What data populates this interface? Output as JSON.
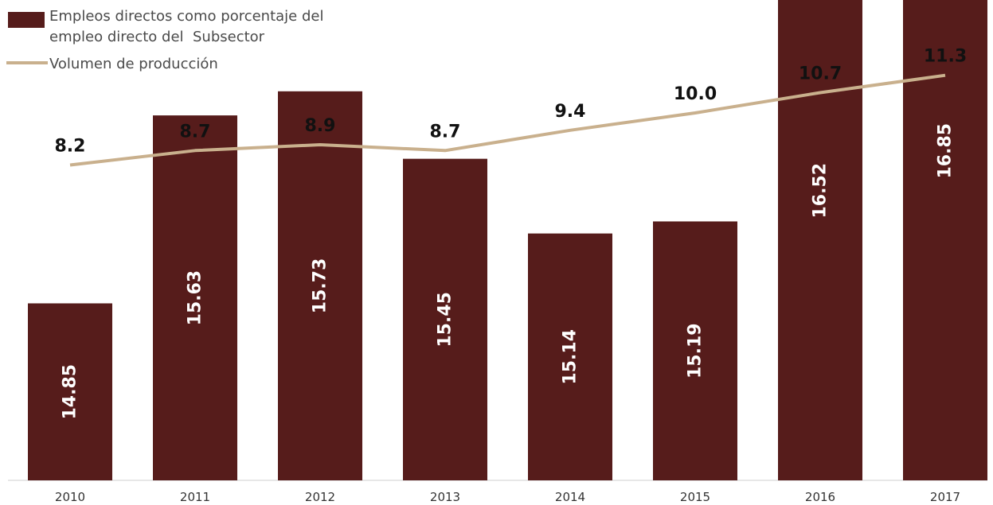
{
  "chart_data": {
    "type": "bar",
    "categories": [
      "2010",
      "2011",
      "2012",
      "2013",
      "2014",
      "2015",
      "2016",
      "2017"
    ],
    "series": [
      {
        "name": "Empleos directos como porcentaje del empleo directo del Subsector",
        "type": "bar",
        "values": [
          14.85,
          15.63,
          15.73,
          15.45,
          15.14,
          15.19,
          16.52,
          16.85
        ],
        "value_labels": [
          "14.85",
          "15.63",
          "15.73",
          "15.45",
          "15.14",
          "15.19",
          "16.52",
          "16.85"
        ],
        "color": "#561c1b"
      },
      {
        "name": "Volumen de producción",
        "type": "line",
        "values": [
          8.2,
          8.7,
          8.9,
          8.7,
          9.4,
          10.0,
          10.7,
          11.3
        ],
        "value_labels": [
          "8.2",
          "8.7",
          "8.9",
          "8.7",
          "9.4",
          "10.0",
          "10.7",
          "11.3"
        ],
        "color": "#c9b08d"
      }
    ],
    "legend": {
      "position": "top-left",
      "bar_lines": [
        "Empleos directos como porcentaje del",
        "empleo directo del  Subsector"
      ],
      "line_label": "Volumen de producción"
    },
    "grid": false
  }
}
